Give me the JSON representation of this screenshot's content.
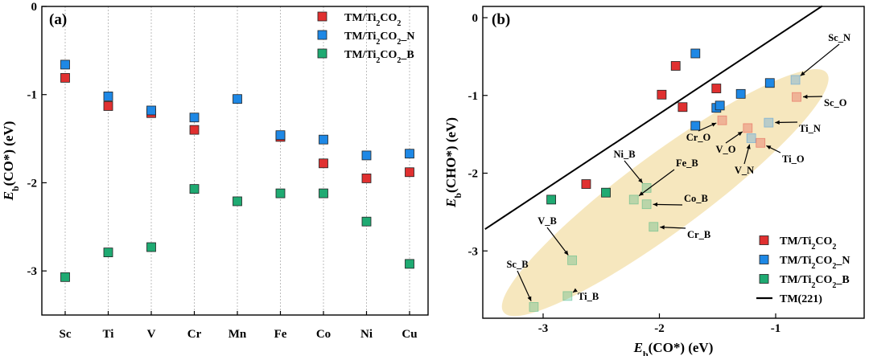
{
  "colors": {
    "tm_ti2co2": "#e03030",
    "tm_ti2co2_n": "#1e88e5",
    "tm_ti2co2_b": "#1faa72",
    "line": "#000000",
    "ellipse": "#f3dfa8",
    "grid": "#bdbdbd"
  },
  "chart_data": [
    {
      "type": "scatter",
      "panel_label": "(a)",
      "ylabel": "E_b(CO*) (eV)",
      "categories": [
        "Sc",
        "Ti",
        "V",
        "Cr",
        "Mn",
        "Fe",
        "Co",
        "Ni",
        "Cu"
      ],
      "ylim": [
        -3.5,
        0
      ],
      "yticks": [
        0,
        -1,
        -2,
        -3
      ],
      "grid": "vertical dotted lines at categories",
      "legend_position": "top-right",
      "series": [
        {
          "name": "TM/Ti₂CO₂",
          "key": "tm_ti2co2",
          "values": [
            -0.81,
            -1.13,
            -1.21,
            -1.4,
            null,
            -1.48,
            -1.78,
            -1.95,
            -1.88
          ]
        },
        {
          "name": "TM/Ti₂CO₂_N",
          "key": "tm_ti2co2_n",
          "values": [
            -0.66,
            -1.02,
            -1.18,
            -1.26,
            -1.05,
            -1.46,
            -1.51,
            -1.69,
            -1.67
          ]
        },
        {
          "name": "TM/Ti₂CO₂_B",
          "key": "tm_ti2co2_b",
          "values": [
            -3.07,
            -2.79,
            -2.73,
            -2.07,
            -2.21,
            -2.12,
            -2.12,
            -2.44,
            -2.92
          ]
        }
      ]
    },
    {
      "type": "scatter",
      "panel_label": "(b)",
      "xlabel": "E_b(CO*) (eV)",
      "ylabel": "E_b(CHO*) (eV)",
      "xlim": [
        -3.5,
        -0.6
      ],
      "ylim": [
        -3.9,
        0.2
      ],
      "xticks": [
        -3,
        -2,
        -1
      ],
      "yticks": [
        0,
        -1,
        -2,
        -3
      ],
      "legend_position": "bottom-right",
      "series": [
        {
          "name": "TM/Ti₂CO₂",
          "key": "tm_ti2co2",
          "points": [
            [
              -1.86,
              -0.62
            ],
            [
              -1.98,
              -0.99
            ],
            [
              -1.8,
              -1.15
            ],
            [
              -1.51,
              -0.91
            ],
            [
              -2.63,
              -2.14
            ]
          ]
        },
        {
          "name": "TM/Ti₂CO₂_N",
          "key": "tm_ti2co2_n",
          "points": [
            [
              -1.69,
              -0.46
            ],
            [
              -1.3,
              -0.98
            ],
            [
              -1.05,
              -0.84
            ],
            [
              -1.51,
              -1.16
            ],
            [
              -1.48,
              -1.13
            ],
            [
              -1.69,
              -1.39
            ]
          ]
        },
        {
          "name": "TM/Ti₂CO₂_B",
          "key": "tm_ti2co2_b",
          "points": [
            [
              -2.93,
              -2.34
            ],
            [
              -2.46,
              -2.25
            ]
          ]
        }
      ],
      "faded_points": [
        {
          "label": "Sc_N",
          "color_key": "tm_ti2co2_n",
          "x": -0.83,
          "y": -0.8
        },
        {
          "label": "Sc_O",
          "color_key": "tm_ti2co2",
          "x": -0.82,
          "y": -1.02
        },
        {
          "label": "Ti_N",
          "color_key": "tm_ti2co2_n",
          "x": -1.06,
          "y": -1.35
        },
        {
          "label": "Cr_O",
          "color_key": "tm_ti2co2",
          "x": -1.46,
          "y": -1.32
        },
        {
          "label": "V_O",
          "color_key": "tm_ti2co2",
          "x": -1.24,
          "y": -1.42
        },
        {
          "label": "V_N",
          "color_key": "tm_ti2co2_n",
          "x": -1.21,
          "y": -1.55
        },
        {
          "label": "Ti_O",
          "color_key": "tm_ti2co2",
          "x": -1.13,
          "y": -1.61
        },
        {
          "label": "Ni_B",
          "color_key": "tm_ti2co2_b",
          "x": -2.11,
          "y": -2.19
        },
        {
          "label": "Fe_B",
          "color_key": "tm_ti2co2_b",
          "x": -2.22,
          "y": -2.34
        },
        {
          "label": "Co_B",
          "color_key": "tm_ti2co2_b",
          "x": -2.11,
          "y": -2.4
        },
        {
          "label": "Cr_B",
          "color_key": "tm_ti2co2_b",
          "x": -2.05,
          "y": -2.69
        },
        {
          "label": "V_B",
          "color_key": "tm_ti2co2_b",
          "x": -2.75,
          "y": -3.12
        },
        {
          "label": "Ti_B",
          "color_key": "tm_ti2co2_b",
          "x": -2.79,
          "y": -3.58
        },
        {
          "label": "Sc_B",
          "color_key": "tm_ti2co2_b",
          "x": -3.08,
          "y": -3.72
        }
      ],
      "line": {
        "name": "TM(221)",
        "from": [
          -3.5,
          -2.72
        ],
        "to": [
          -0.6,
          0.15
        ]
      },
      "legend": [
        {
          "label": "TM/Ti₂CO₂",
          "key": "tm_ti2co2"
        },
        {
          "label": "TM/Ti₂CO₂_N",
          "key": "tm_ti2co2_n"
        },
        {
          "label": "TM/Ti₂CO₂_B",
          "key": "tm_ti2co2_b"
        },
        {
          "label": "TM(221)",
          "key": "line"
        }
      ]
    }
  ]
}
